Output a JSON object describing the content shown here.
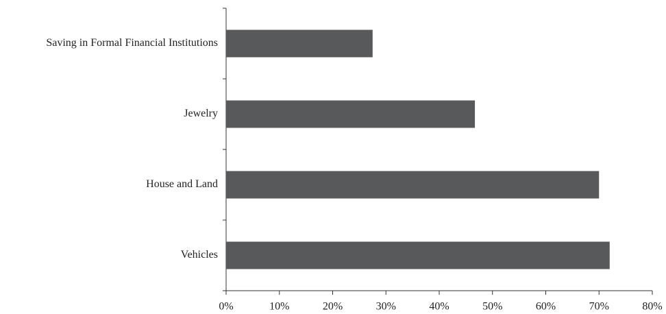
{
  "chart_data": {
    "type": "hbar",
    "categories": [
      "Saving in Formal Financial Institutions",
      "Jewelry",
      "House and Land",
      "Vehicles"
    ],
    "values": [
      27.5,
      46.7,
      70,
      72
    ],
    "color": "#58595b",
    "xlim": [
      0,
      80
    ],
    "xticks": [
      {
        "value": 0,
        "label": "0%"
      },
      {
        "value": 10,
        "label": "10%"
      },
      {
        "value": 20,
        "label": "20%"
      },
      {
        "value": 30,
        "label": "30%"
      },
      {
        "value": 40,
        "label": "40%"
      },
      {
        "value": 50,
        "label": "50%"
      },
      {
        "value": 60,
        "label": "60%"
      },
      {
        "value": 70,
        "label": "70%"
      },
      {
        "value": 80,
        "label": "80%"
      }
    ],
    "grid": false
  }
}
